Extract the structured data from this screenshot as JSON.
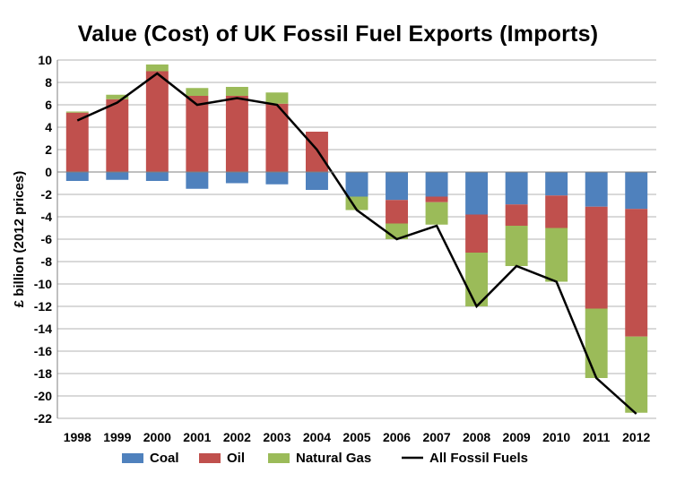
{
  "chart_data": {
    "type": "bar",
    "subtype": "stacked bar with line overlay",
    "title": "Value (Cost) of UK Fossil Fuel Exports (Imports)",
    "xlabel": "",
    "ylabel": "£ billion (2012 prices)",
    "ylim": [
      -22,
      10
    ],
    "yticks": [
      10,
      8,
      6,
      4,
      2,
      0,
      -2,
      -4,
      -6,
      -8,
      -10,
      -12,
      -14,
      -16,
      -18,
      -20,
      -22
    ],
    "grid": true,
    "legend_position": "bottom",
    "categories": [
      "1998",
      "1999",
      "2000",
      "2001",
      "2002",
      "2003",
      "2004",
      "2005",
      "2006",
      "2007",
      "2008",
      "2009",
      "2010",
      "2011",
      "2012"
    ],
    "series": [
      {
        "name": "Coal",
        "type": "bar",
        "color": "#4f81bd",
        "values": [
          -0.8,
          -0.7,
          -0.8,
          -1.5,
          -1.0,
          -1.1,
          -1.6,
          -2.2,
          -2.5,
          -2.2,
          -3.8,
          -2.9,
          -2.1,
          -3.1,
          -3.3
        ]
      },
      {
        "name": "Oil",
        "type": "bar",
        "color": "#c0504d",
        "values": [
          5.3,
          6.5,
          9.0,
          6.8,
          6.8,
          6.1,
          3.6,
          0.0,
          -2.1,
          -0.5,
          -3.4,
          -1.9,
          -2.9,
          -9.1,
          -11.4
        ]
      },
      {
        "name": "Natural Gas",
        "type": "bar",
        "color": "#9bbb59",
        "values": [
          0.1,
          0.4,
          0.6,
          0.7,
          0.8,
          1.0,
          0.0,
          -1.2,
          -1.4,
          -2.0,
          -4.8,
          -3.6,
          -4.8,
          -6.2,
          -6.8
        ]
      },
      {
        "name": "All Fossil Fuels",
        "type": "line",
        "color": "#000000",
        "values": [
          4.6,
          6.2,
          8.8,
          6.0,
          6.6,
          6.0,
          2.0,
          -3.4,
          -6.0,
          -4.8,
          -12.0,
          -8.4,
          -9.8,
          -18.4,
          -21.6
        ]
      }
    ]
  }
}
